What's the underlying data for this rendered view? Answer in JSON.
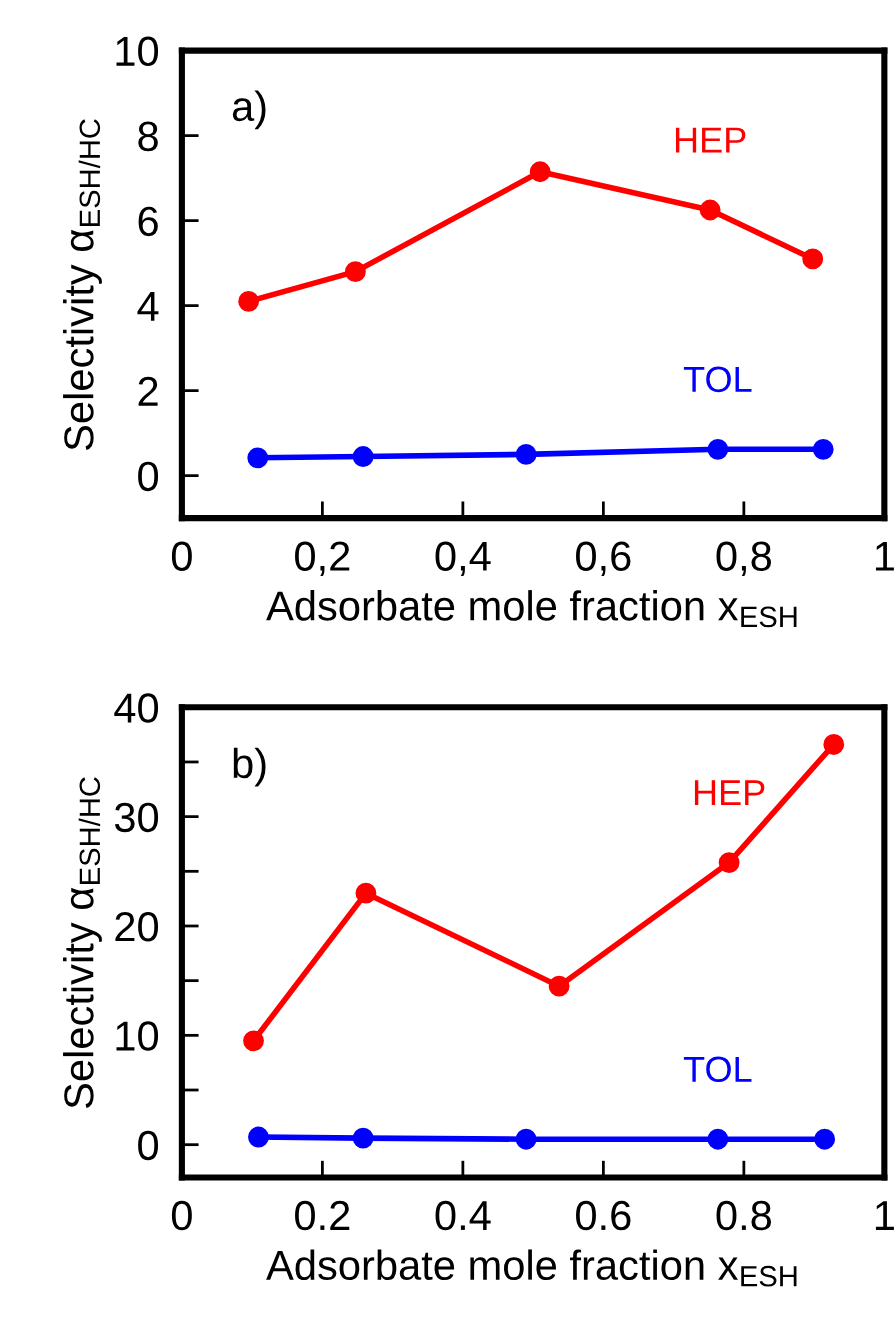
{
  "chart_data": [
    {
      "type": "line",
      "xlabel": "Adsorbate mole fraction x$_{ESH}$",
      "ylabel": "Selectivity α$_{ESH/HC}$",
      "annotations": [
        "a)"
      ],
      "legend": false,
      "grid": false,
      "marker": "circle",
      "line_style": "solid",
      "xlim": [
        0,
        1
      ],
      "xticks": [
        0,
        {
          "value": 0.2,
          "label": "0,2"
        },
        {
          "value": 0.4,
          "label": "0,4"
        },
        {
          "value": 0.6,
          "label": "0,6"
        },
        {
          "value": 0.8,
          "label": "0,8"
        },
        1
      ],
      "ylim": [
        -1,
        10
      ],
      "yticks": [
        0,
        2,
        4,
        6,
        8,
        10
      ],
      "series": [
        {
          "name": "HEP",
          "color": "#ff0000",
          "x": [
            0.095,
            0.247,
            0.51,
            0.752,
            0.898
          ],
          "values": [
            4.1,
            4.8,
            7.15,
            6.25,
            5.1
          ]
        },
        {
          "name": "TOL",
          "color": "#0000ff",
          "x": [
            0.108,
            0.258,
            0.49,
            0.763,
            0.913
          ],
          "values": [
            0.42,
            0.45,
            0.5,
            0.62,
            0.62
          ]
        }
      ]
    },
    {
      "type": "line",
      "xlabel": "Adsorbate mole fraction x$_{ESH}$",
      "ylabel": "Selectivity α$_{ESH/HC}$",
      "annotations": [
        "b)"
      ],
      "legend": false,
      "grid": false,
      "marker": "circle",
      "line_style": "solid",
      "xlim": [
        0,
        1
      ],
      "xticks": [
        0,
        0.2,
        0.4,
        0.6,
        0.8,
        1
      ],
      "ylim": [
        -3,
        40
      ],
      "yticks": [
        0,
        {
          "value": 5,
          "label": null
        },
        10,
        {
          "value": 15,
          "label": null
        },
        20,
        {
          "value": 25,
          "label": null
        },
        30,
        {
          "value": 35,
          "label": null
        },
        40
      ],
      "series": [
        {
          "name": "HEP",
          "color": "#ff0000",
          "x": [
            0.102,
            0.262,
            0.537,
            0.779,
            0.928
          ],
          "values": [
            9.5,
            23,
            14.5,
            25.8,
            36.6
          ]
        },
        {
          "name": "TOL",
          "color": "#0000ff",
          "x": [
            0.109,
            0.258,
            0.49,
            0.763,
            0.915
          ],
          "values": [
            0.7,
            0.6,
            0.5,
            0.5,
            0.5
          ]
        }
      ]
    }
  ]
}
